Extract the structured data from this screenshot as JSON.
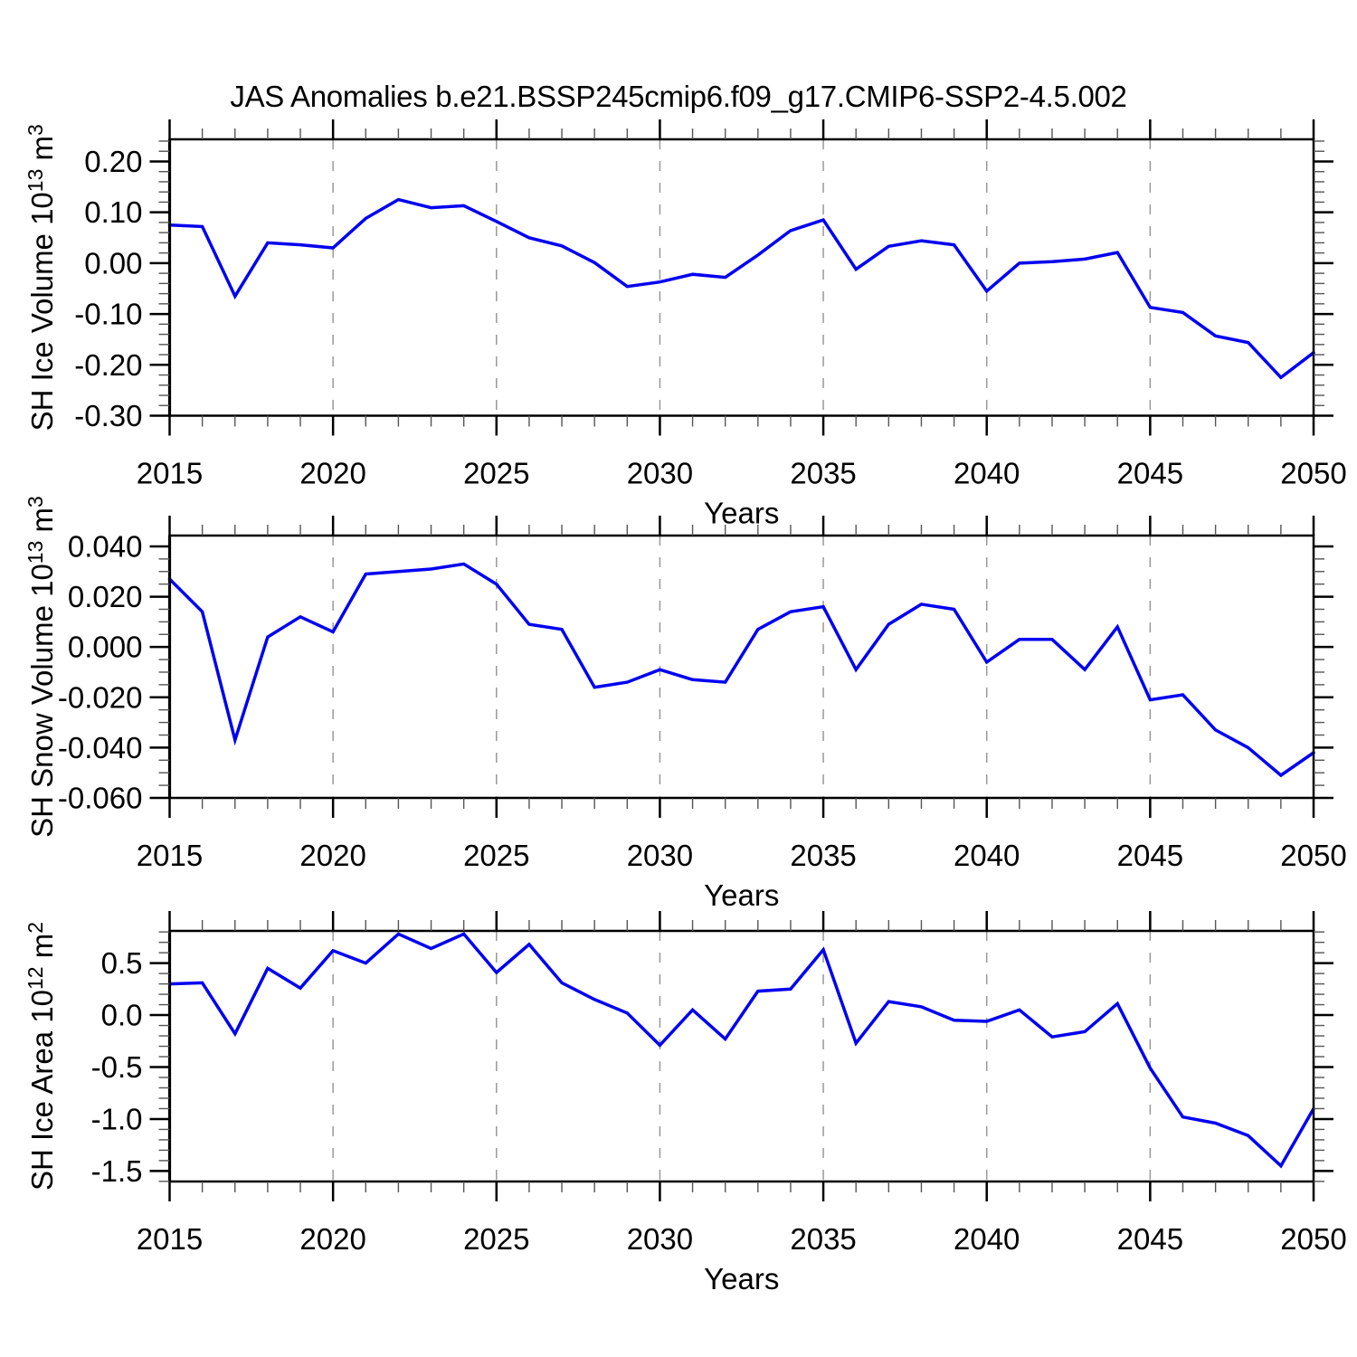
{
  "title": "JAS Anomalies b.e21.BSSP245cmip6.f09_g17.CMIP6-SSP2-4.5.002",
  "colors": {
    "line": "#0000f0",
    "frame": "#000000",
    "major_tick": "#000000",
    "minor_tick": "#555555",
    "grid_dashed": "#999999"
  },
  "x_axis": {
    "label": "Years",
    "tick_labels": [
      "2015",
      "2020",
      "2025",
      "2030",
      "2035",
      "2040",
      "2045",
      "2050"
    ]
  },
  "chart_data": {
    "type": "line",
    "layout": "3 stacked subplots sharing x axis, vertical dashed gridlines, outward ticks on all four sides, no legend",
    "title": "JAS Anomalies b.e21.BSSP245cmip6.f09_g17.CMIP6-SSP2-4.5.002",
    "xlabel": "Years",
    "x": [
      2015,
      2016,
      2017,
      2018,
      2019,
      2020,
      2021,
      2022,
      2023,
      2024,
      2025,
      2026,
      2027,
      2028,
      2029,
      2030,
      2031,
      2032,
      2033,
      2034,
      2035,
      2036,
      2037,
      2038,
      2039,
      2040,
      2041,
      2042,
      2043,
      2044,
      2045,
      2046,
      2047,
      2048,
      2049,
      2050
    ],
    "x_major_ticks": [
      2015,
      2020,
      2025,
      2030,
      2035,
      2040,
      2045,
      2050
    ],
    "x_minor_step_years": 1,
    "grid_years_dashed": [
      2020,
      2025,
      2030,
      2035,
      2040,
      2045
    ],
    "subplots": [
      {
        "ylabel": "SH Ice Volume 10^13 m^3",
        "ylabel_parts": [
          {
            "t": "SH Ice Volume 10"
          },
          {
            "t": "13",
            "sup": true
          },
          {
            "t": " m"
          },
          {
            "t": "3",
            "sup": true
          }
        ],
        "values": [
          0.075,
          0.072,
          -0.065,
          0.04,
          0.036,
          0.03,
          0.088,
          0.125,
          0.109,
          0.113,
          0.082,
          0.05,
          0.034,
          0.001,
          -0.046,
          -0.037,
          -0.022,
          -0.028,
          0.016,
          0.064,
          0.085,
          -0.012,
          0.033,
          0.044,
          0.036,
          -0.055,
          0.0,
          0.003,
          0.008,
          0.021,
          -0.087,
          -0.097,
          -0.143,
          -0.156,
          -0.225,
          -0.176
        ],
        "ylim": [
          -0.3,
          0.2435
        ],
        "yticks": [
          0.2,
          0.1,
          0.0,
          -0.1,
          -0.2,
          -0.3
        ],
        "ytick_labels": [
          "0.20",
          "0.10",
          "0.00",
          "-0.10",
          "-0.20",
          "-0.30"
        ],
        "y_minor_step": 0.02
      },
      {
        "ylabel": "SH Snow Volume 10^13 m^3",
        "ylabel_parts": [
          {
            "t": "SH Snow Volume 10"
          },
          {
            "t": "13",
            "sup": true
          },
          {
            "t": " m"
          },
          {
            "t": "3",
            "sup": true
          }
        ],
        "values": [
          0.027,
          0.014,
          -0.037,
          0.004,
          0.012,
          0.006,
          0.029,
          0.03,
          0.031,
          0.033,
          0.025,
          0.009,
          0.007,
          -0.016,
          -0.014,
          -0.009,
          -0.013,
          -0.014,
          0.007,
          0.014,
          0.016,
          -0.009,
          0.009,
          0.017,
          0.015,
          -0.006,
          0.003,
          0.003,
          -0.009,
          0.008,
          -0.021,
          -0.019,
          -0.033,
          -0.04,
          -0.051,
          -0.042
        ],
        "ylim": [
          -0.06,
          0.0443
        ],
        "yticks": [
          0.04,
          0.02,
          0.0,
          -0.02,
          -0.04,
          -0.06
        ],
        "ytick_labels": [
          "0.040",
          "0.020",
          "0.000",
          "-0.020",
          "-0.040",
          "-0.060"
        ],
        "y_minor_step": 0.005
      },
      {
        "ylabel": "SH Ice Area 10^12 m^2",
        "ylabel_parts": [
          {
            "t": "SH Ice Area 10"
          },
          {
            "t": "12",
            "sup": true
          },
          {
            "t": " m"
          },
          {
            "t": "2",
            "sup": true
          }
        ],
        "values": [
          0.3,
          0.31,
          -0.18,
          0.45,
          0.26,
          0.62,
          0.5,
          0.78,
          0.64,
          0.78,
          0.41,
          0.68,
          0.31,
          0.15,
          0.02,
          -0.29,
          0.05,
          -0.23,
          0.23,
          0.25,
          0.63,
          -0.27,
          0.13,
          0.08,
          -0.05,
          -0.06,
          0.05,
          -0.21,
          -0.16,
          0.11,
          -0.51,
          -0.98,
          -1.04,
          -1.16,
          -1.45,
          -0.9
        ],
        "ylim": [
          -1.601,
          0.81
        ],
        "yticks": [
          0.5,
          0.0,
          -0.5,
          -1.0,
          -1.5
        ],
        "ytick_labels": [
          "0.5",
          "0.0",
          "-0.5",
          "-1.0",
          "-1.5"
        ],
        "y_minor_step": 0.1
      }
    ]
  }
}
